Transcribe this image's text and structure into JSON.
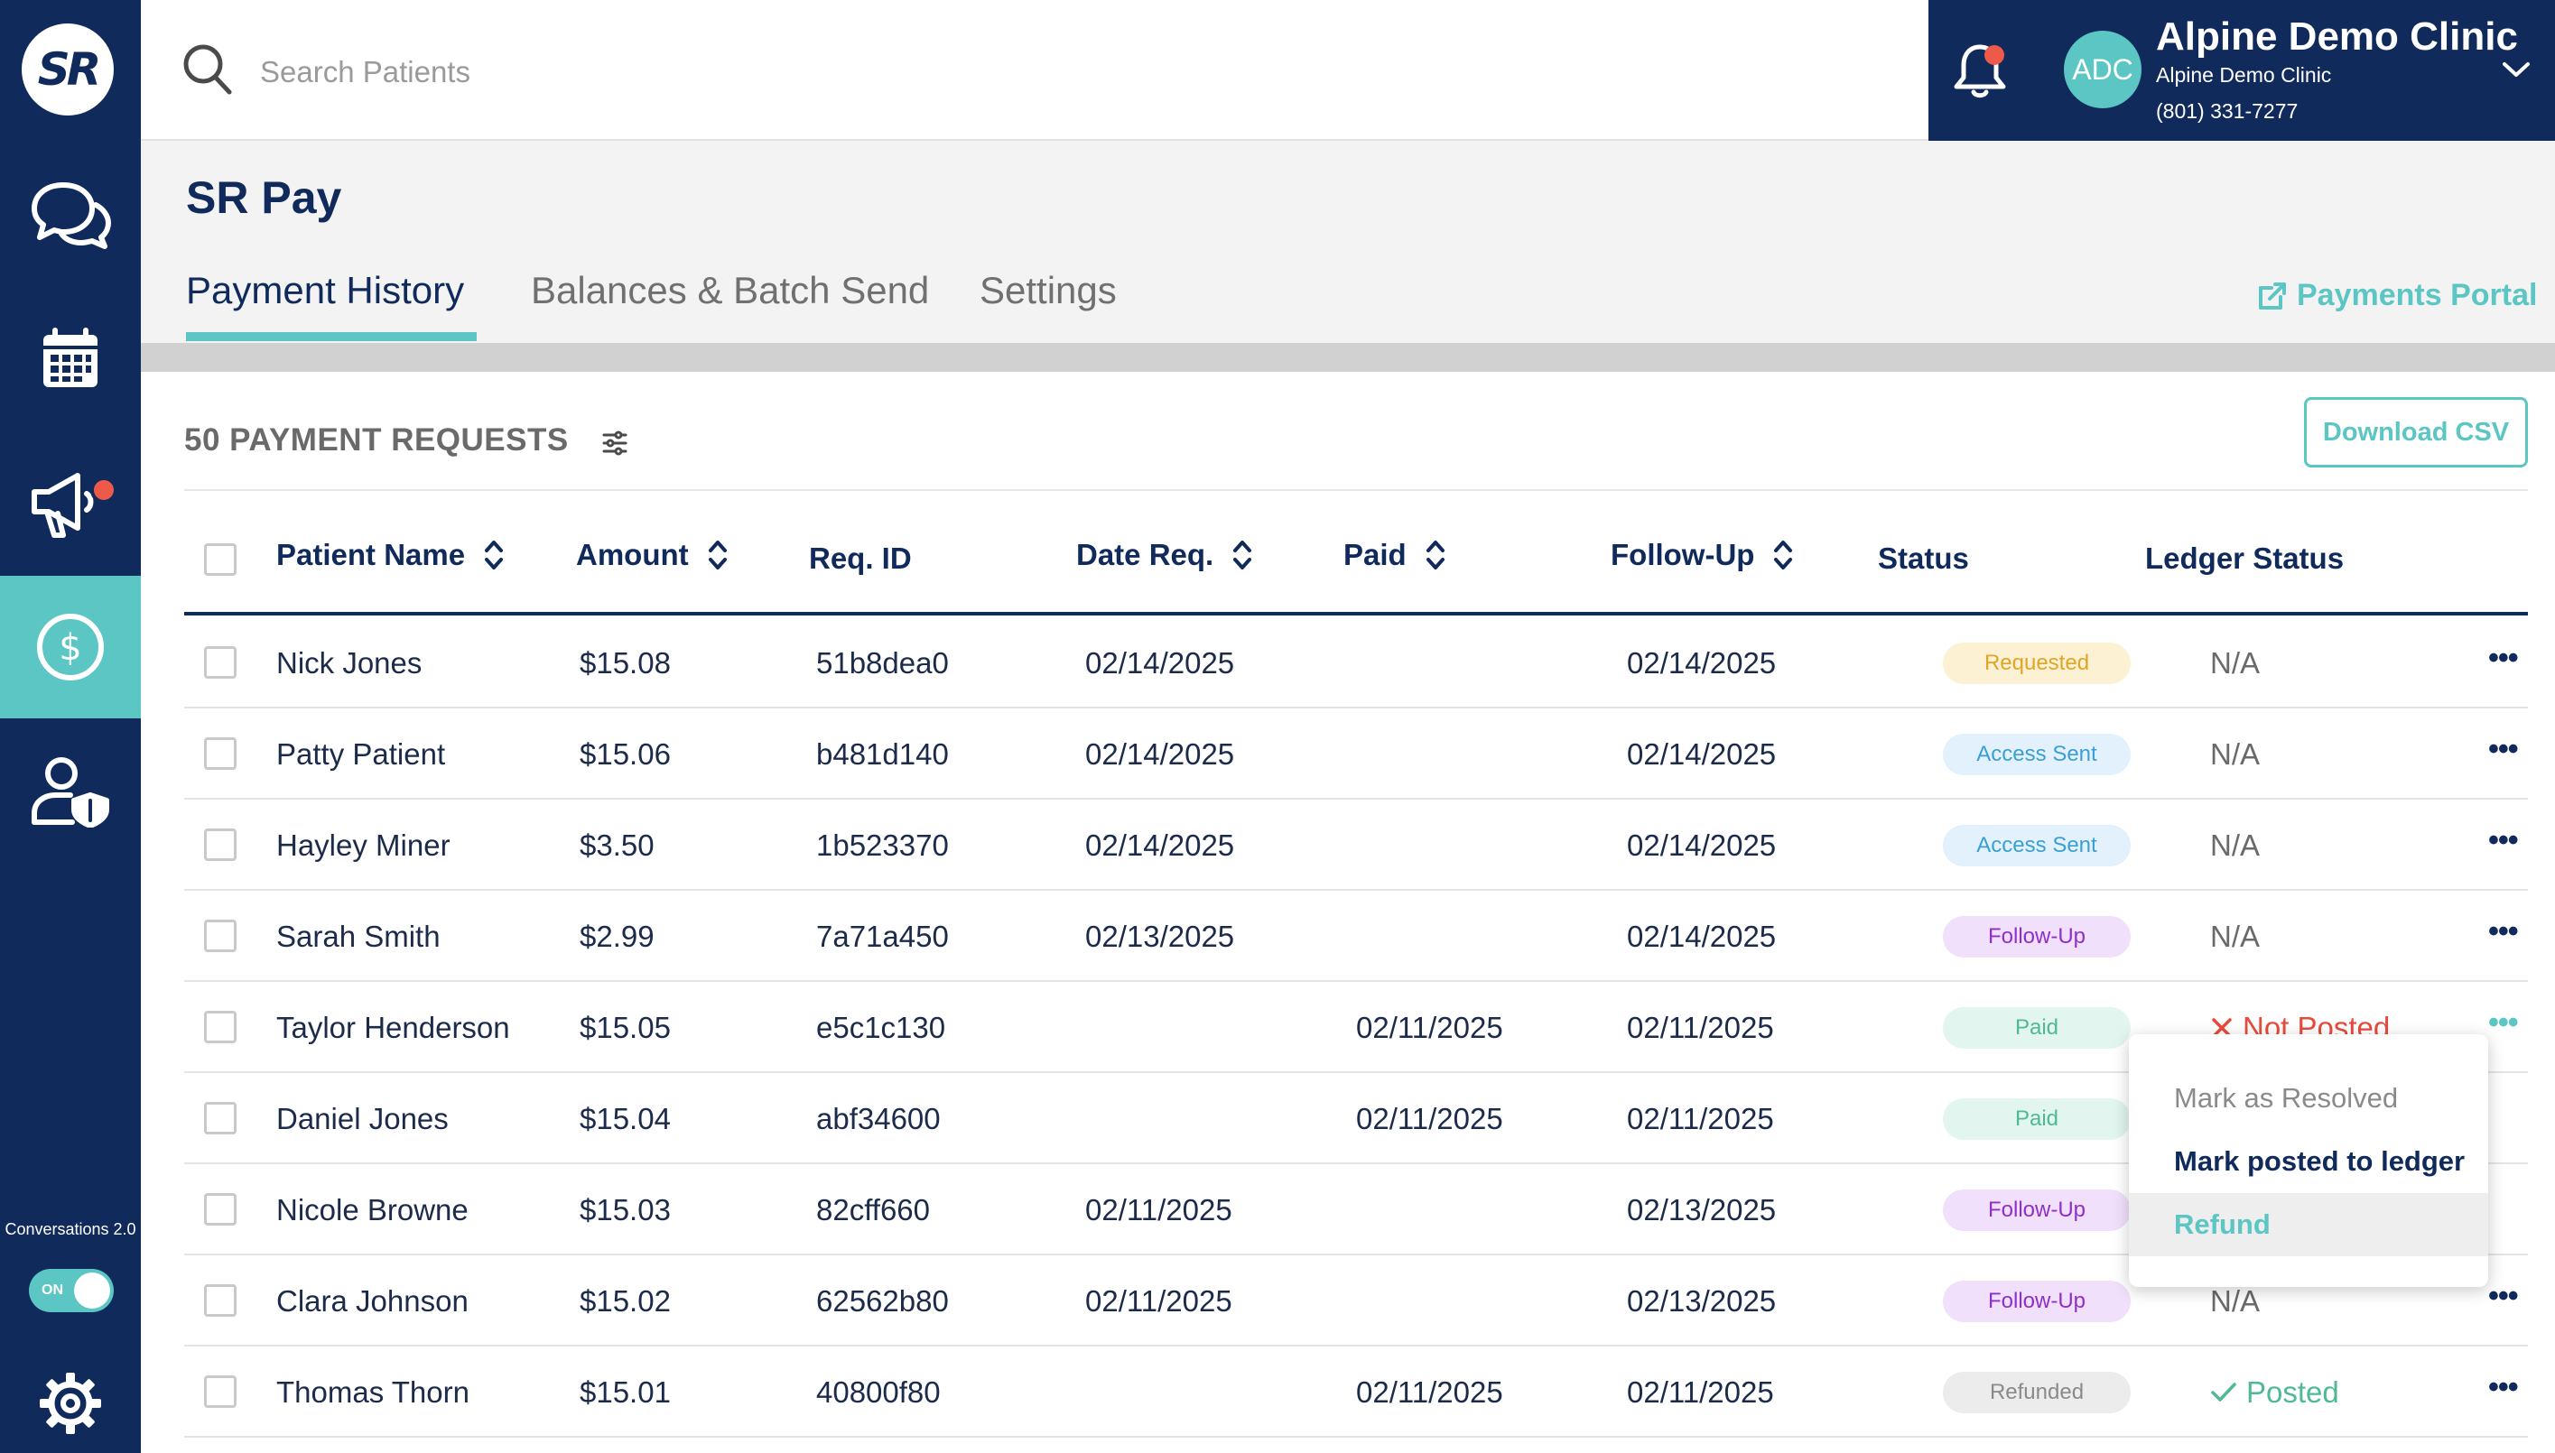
{
  "sidebar": {
    "logo_text": "SR",
    "items": [
      {
        "icon": "chat-bubbles-icon",
        "active": false
      },
      {
        "icon": "calendar-icon",
        "active": false
      },
      {
        "icon": "megaphone-icon",
        "active": false,
        "notification": true
      },
      {
        "icon": "dollar-circle-icon",
        "active": true
      },
      {
        "icon": "user-shield-icon",
        "active": false
      }
    ],
    "conversations_label": "Conversations 2.0",
    "toggle_label": "ON",
    "settings_icon": "gear-icon"
  },
  "topbar": {
    "search_placeholder": "Search Patients",
    "clinic": {
      "avatar_initials": "ADC",
      "name": "Alpine Demo Clinic",
      "sub_name": "Alpine Demo Clinic",
      "phone": "(801) 331-7277"
    }
  },
  "page": {
    "title": "SR Pay",
    "tabs": [
      {
        "label": "Payment History",
        "active": true
      },
      {
        "label": "Balances & Batch Send",
        "active": false
      },
      {
        "label": "Settings",
        "active": false
      }
    ],
    "portal_link": "Payments Portal"
  },
  "table": {
    "count_label": "50 PAYMENT REQUESTS",
    "download_label": "Download CSV",
    "columns": [
      "Patient Name",
      "Amount",
      "Req. ID",
      "Date Req.",
      "Paid",
      "Follow-Up",
      "Status",
      "Ledger Status"
    ],
    "rows": [
      {
        "name": "Nick Jones",
        "amount": "$15.08",
        "req_id": "51b8dea0",
        "date_req": "02/14/2025",
        "paid": "",
        "follow_up": "02/14/2025",
        "status": "Requested",
        "ledger": "N/A"
      },
      {
        "name": "Patty Patient",
        "amount": "$15.06",
        "req_id": "b481d140",
        "date_req": "02/14/2025",
        "paid": "",
        "follow_up": "02/14/2025",
        "status": "Access Sent",
        "ledger": "N/A"
      },
      {
        "name": "Hayley Miner",
        "amount": "$3.50",
        "req_id": "1b523370",
        "date_req": "02/14/2025",
        "paid": "",
        "follow_up": "02/14/2025",
        "status": "Access Sent",
        "ledger": "N/A"
      },
      {
        "name": "Sarah Smith",
        "amount": "$2.99",
        "req_id": "7a71a450",
        "date_req": "02/13/2025",
        "paid": "",
        "follow_up": "02/14/2025",
        "status": "Follow-Up",
        "ledger": "N/A"
      },
      {
        "name": "Taylor Henderson",
        "amount": "$15.05",
        "req_id": "e5c1c130",
        "date_req": "",
        "paid": "02/11/2025",
        "follow_up": "02/11/2025",
        "status": "Paid",
        "ledger": "Not Posted"
      },
      {
        "name": "Daniel Jones",
        "amount": "$15.04",
        "req_id": "abf34600",
        "date_req": "",
        "paid": "02/11/2025",
        "follow_up": "02/11/2025",
        "status": "Paid",
        "ledger": ""
      },
      {
        "name": "Nicole Browne",
        "amount": "$15.03",
        "req_id": "82cff660",
        "date_req": "02/11/2025",
        "paid": "",
        "follow_up": "02/13/2025",
        "status": "Follow-Up",
        "ledger": ""
      },
      {
        "name": "Clara Johnson",
        "amount": "$15.02",
        "req_id": "62562b80",
        "date_req": "02/11/2025",
        "paid": "",
        "follow_up": "02/13/2025",
        "status": "Follow-Up",
        "ledger": "N/A"
      },
      {
        "name": "Thomas Thorn",
        "amount": "$15.01",
        "req_id": "40800f80",
        "date_req": "",
        "paid": "02/11/2025",
        "follow_up": "02/11/2025",
        "status": "Refunded",
        "ledger": "Posted"
      }
    ]
  },
  "row_menu": {
    "items": [
      "Mark as Resolved",
      "Mark posted to ledger",
      "Refund"
    ]
  },
  "colors": {
    "navy": "#102a5c",
    "teal": "#5bc6c3",
    "alert_red": "#ee5a4a"
  }
}
